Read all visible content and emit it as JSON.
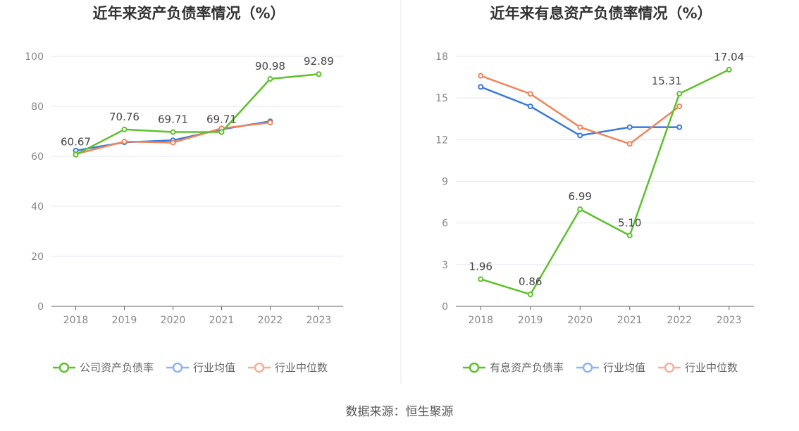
{
  "source": "数据来源：恒生聚源",
  "chart_data": [
    {
      "type": "line",
      "title": "近年来资产负债率情况（%）",
      "categories": [
        "2018",
        "2019",
        "2020",
        "2021",
        "2022",
        "2023"
      ],
      "ylim": [
        0,
        100
      ],
      "yticks": [
        "0",
        "20",
        "40",
        "60",
        "80",
        "100"
      ],
      "grid": true,
      "legend_position": "bottom",
      "series": [
        {
          "name": "公司资产负债率",
          "color": "#5cc22a",
          "values": [
            60.67,
            70.76,
            69.71,
            69.71,
            90.98,
            92.89
          ],
          "labels": [
            "60.67",
            "70.76",
            "69.71",
            "69.71",
            "90.98",
            "92.89"
          ]
        },
        {
          "name": "行业均值",
          "color": "#3a78dc",
          "values": [
            62.3,
            65.6,
            66.4,
            70.8,
            74.0,
            null
          ]
        },
        {
          "name": "行业中位数",
          "color": "#f0855a",
          "values": [
            60.9,
            65.9,
            65.5,
            71.2,
            73.5,
            null
          ]
        }
      ]
    },
    {
      "type": "line",
      "title": "近年来有息资产负债率情况（%）",
      "categories": [
        "2018",
        "2019",
        "2020",
        "2021",
        "2022",
        "2023"
      ],
      "ylim": [
        0,
        18
      ],
      "yticks": [
        "0",
        "3",
        "6",
        "9",
        "12",
        "15",
        "18"
      ],
      "grid": true,
      "legend_position": "bottom",
      "series": [
        {
          "name": "有息资产负债率",
          "color": "#5cc22a",
          "values": [
            1.96,
            0.86,
            6.99,
            5.1,
            15.31,
            17.04
          ],
          "labels": [
            "1.96",
            "0.86",
            "6.99",
            "5.10",
            "15.31",
            "17.04"
          ]
        },
        {
          "name": "行业均值",
          "color": "#3a78dc",
          "values": [
            15.8,
            14.4,
            12.3,
            12.9,
            12.9,
            null
          ]
        },
        {
          "name": "行业中位数",
          "color": "#f0855a",
          "values": [
            16.6,
            15.3,
            12.9,
            11.7,
            14.4,
            null
          ]
        }
      ]
    }
  ]
}
